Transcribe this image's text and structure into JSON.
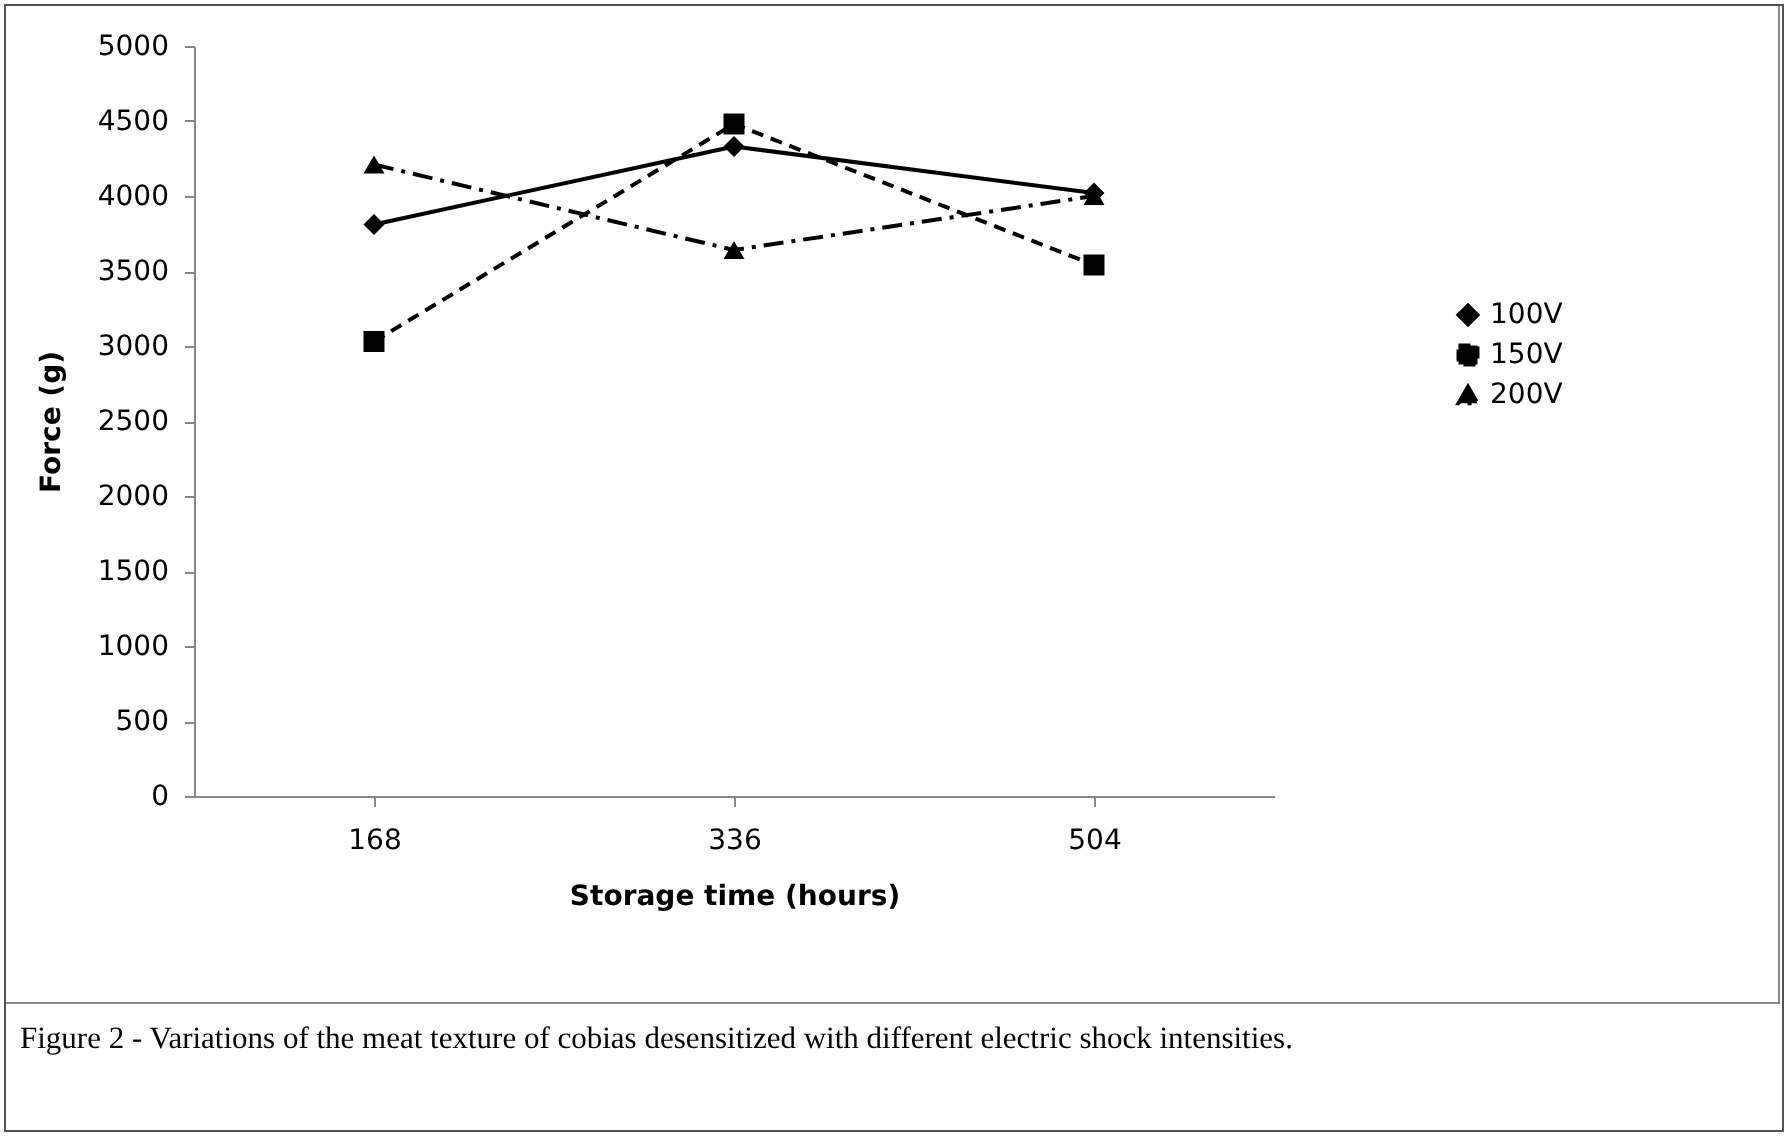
{
  "chart_data": {
    "type": "line",
    "xlabel": "Storage time (hours)",
    "ylabel": "Force (g)",
    "categories": [
      "168",
      "336",
      "504"
    ],
    "series": [
      {
        "name": "100V",
        "color": "#000000",
        "values": [
          3810,
          4330,
          4020
        ],
        "marker": "diamond",
        "line_style": "solid"
      },
      {
        "name": "150V",
        "color": "#000000",
        "values": [
          3030,
          4480,
          3540
        ],
        "marker": "square",
        "line_style": "dashed"
      },
      {
        "name": "200V",
        "color": "#000000",
        "values": [
          4210,
          3640,
          4000
        ],
        "marker": "triangle",
        "line_style": "dashdot"
      }
    ],
    "ylim": [
      0,
      5000
    ],
    "yticks": [
      0,
      500,
      1000,
      1500,
      2000,
      2500,
      3000,
      3500,
      4000,
      4500,
      5000
    ],
    "grid": false,
    "legend": "right",
    "annotations": [
      "Figure 2 - Variations of the meat texture of cobias desensitized with different electric shock intensities."
    ]
  }
}
